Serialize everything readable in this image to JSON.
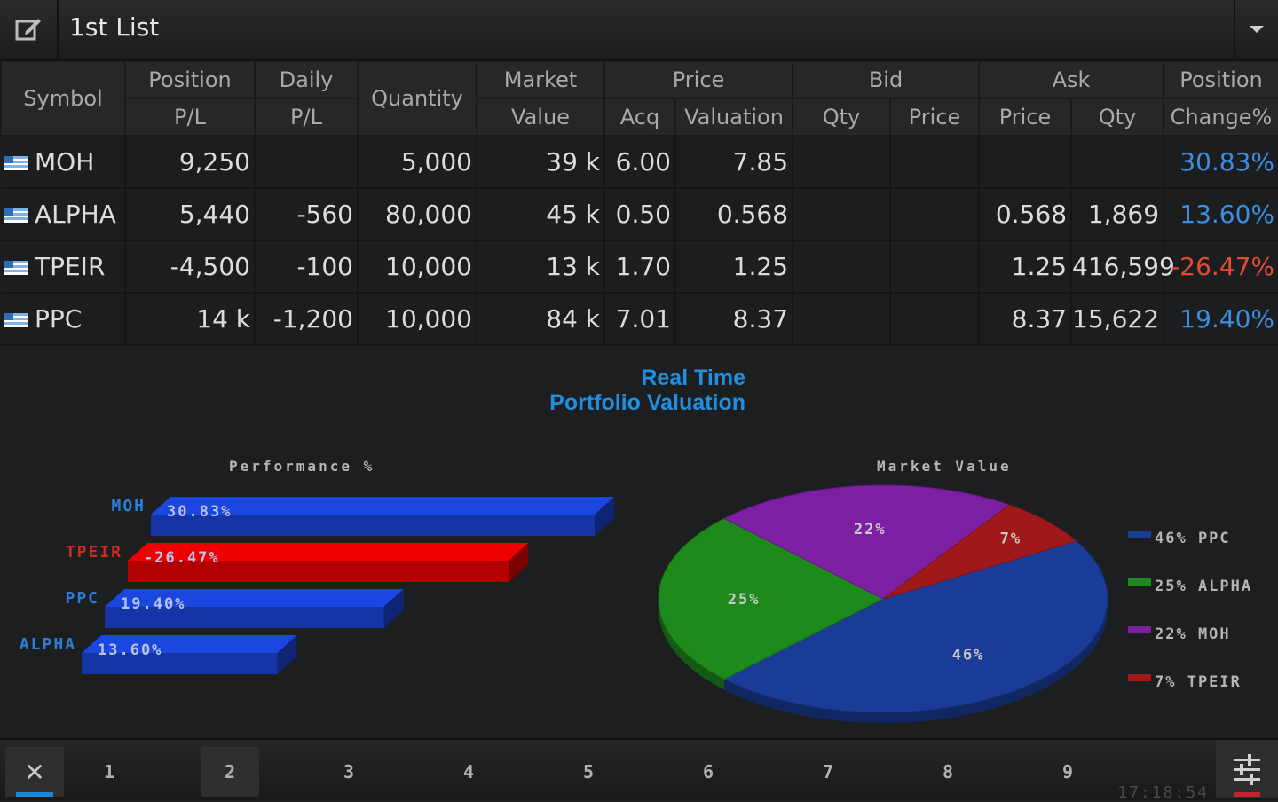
{
  "header": {
    "list_title": "1st List",
    "edit_icon": "edit-icon",
    "dropdown_icon": "chevron-down-icon"
  },
  "table": {
    "headers": {
      "symbol": "Symbol",
      "position_pl": [
        "Position",
        "P/L"
      ],
      "daily_pl": [
        "Daily",
        "P/L"
      ],
      "quantity": "Quantity",
      "market_value": [
        "Market",
        "Value"
      ],
      "price": "Price",
      "price_acq": "Acq",
      "price_valuation": "Valuation",
      "bid": "Bid",
      "bid_qty": "Qty",
      "bid_price": "Price",
      "ask": "Ask",
      "ask_price": "Price",
      "ask_qty": "Qty",
      "position_change": [
        "Position",
        "Change%"
      ]
    },
    "rows": [
      {
        "symbol": "MOH",
        "position_pl": "9,250",
        "daily_pl": "",
        "quantity": "5,000",
        "market_value": "39 k",
        "acq": "6.00",
        "valuation": "7.85",
        "bid_qty": "",
        "bid_price": "",
        "ask_price": "",
        "ask_qty": "",
        "change": "30.83%",
        "change_sign": "pos"
      },
      {
        "symbol": "ALPHA",
        "position_pl": "5,440",
        "daily_pl": "-560",
        "quantity": "80,000",
        "market_value": "45 k",
        "acq": "0.50",
        "valuation": "0.568",
        "bid_qty": "",
        "bid_price": "",
        "ask_price": "0.568",
        "ask_qty": "1,869",
        "change": "13.60%",
        "change_sign": "pos"
      },
      {
        "symbol": "TPEIR",
        "position_pl": "-4,500",
        "daily_pl": "-100",
        "quantity": "10,000",
        "market_value": "13 k",
        "acq": "1.70",
        "valuation": "1.25",
        "bid_qty": "",
        "bid_price": "",
        "ask_price": "1.25",
        "ask_qty": "416,599",
        "change": "-26.47%",
        "change_sign": "neg"
      },
      {
        "symbol": "PPC",
        "position_pl": "14 k",
        "daily_pl": "-1,200",
        "quantity": "10,000",
        "market_value": "84 k",
        "acq": "7.01",
        "valuation": "8.37",
        "bid_qty": "",
        "bid_price": "",
        "ask_price": "8.37",
        "ask_qty": "15,622",
        "change": "19.40%",
        "change_sign": "pos"
      }
    ]
  },
  "charts_title": [
    "Real Time",
    "Portfolio Valuation"
  ],
  "chart_data": [
    {
      "type": "bar",
      "title": "Performance %",
      "categories": [
        "MOH",
        "TPEIR",
        "PPC",
        "ALPHA"
      ],
      "values": [
        30.83,
        -26.47,
        19.4,
        13.6
      ],
      "labels": [
        "30.83%",
        "-26.47%",
        "19.40%",
        "13.60%"
      ],
      "colors": [
        "#1534a6",
        "#b00000",
        "#1534a6",
        "#1534a6"
      ],
      "label_colors": [
        "#2a7fd8",
        "#d32a1e",
        "#2a7fd8",
        "#2a7fd8"
      ]
    },
    {
      "type": "pie",
      "title": "Market Value",
      "labels": [
        "PPC",
        "ALPHA",
        "MOH",
        "TPEIR"
      ],
      "values": [
        46,
        25,
        22,
        7
      ],
      "slice_labels": [
        "46%",
        "25%",
        "22%",
        "7%"
      ],
      "colors": [
        "#1a3c97",
        "#1f8a1c",
        "#7d1fa3",
        "#a0191a"
      ],
      "legend": [
        "46% PPC",
        "25% ALPHA",
        "22% MOH",
        "7% TPEIR"
      ],
      "legend_placement": "right"
    }
  ],
  "bottom_bar": {
    "close_label": "✕",
    "tabs": [
      "1",
      "2",
      "3",
      "4",
      "5",
      "6",
      "7",
      "8",
      "9"
    ],
    "active_tab": "2",
    "clock": "17:18:54",
    "settings_icon": "sliders-icon"
  }
}
